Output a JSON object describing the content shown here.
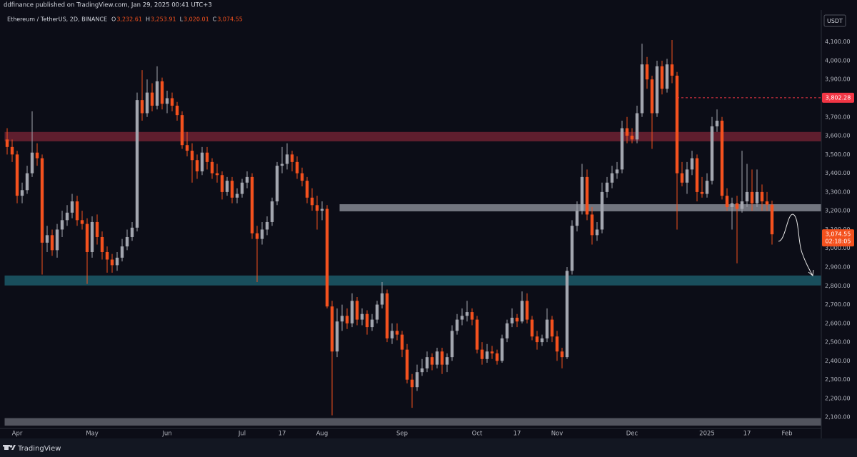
{
  "header": {
    "publisher": "ddfinance published on TradingView.com, Jan 29, 2025 00:41 UTC+3",
    "brand": "TradingView"
  },
  "chart_data": {
    "type": "candlestick",
    "title": "Ethereum / TetherUS, 2D, BINANCE",
    "ohlc": [
      {
        "key": "O",
        "value": {
          "value": 3232.61,
          "label": "3,232.61"
        }
      },
      {
        "key": "H",
        "value": {
          "value": 3253.91,
          "label": "3,253.91"
        }
      },
      {
        "key": "L",
        "value": {
          "value": 3020.01,
          "label": "3,020.01"
        }
      },
      {
        "key": "C",
        "value": {
          "value": 3074.55,
          "label": "3,074.55"
        }
      }
    ],
    "currency": "USDT",
    "up_color": "#a3a6af",
    "down_color": "#f4511e",
    "ylim": [
      2040,
      4270
    ],
    "yticks": [
      {
        "value": 2100,
        "label": "2,100.00"
      },
      {
        "value": 2200,
        "label": "2,200.00"
      },
      {
        "value": 2300,
        "label": "2,300.00"
      },
      {
        "value": 2400,
        "label": "2,400.00"
      },
      {
        "value": 2500,
        "label": "2,500.00"
      },
      {
        "value": 2600,
        "label": "2,600.00"
      },
      {
        "value": 2700,
        "label": "2,700.00"
      },
      {
        "value": 2800,
        "label": "2,800.00"
      },
      {
        "value": 2900,
        "label": "2,900.00"
      },
      {
        "value": 3000,
        "label": "3,000.00"
      },
      {
        "value": 3100,
        "label": "3,100.00"
      },
      {
        "value": 3200,
        "label": "3,200.00"
      },
      {
        "value": 3300,
        "label": "3,300.00"
      },
      {
        "value": 3400,
        "label": "3,400.00"
      },
      {
        "value": 3500,
        "label": "3,500.00"
      },
      {
        "value": 3600,
        "label": "3,600.00"
      },
      {
        "value": 3700,
        "label": "3,700.00"
      },
      {
        "value": 3800,
        "label": "3,800.00"
      },
      {
        "value": 3900,
        "label": "3,900.00"
      },
      {
        "value": 4000,
        "label": "4,000.00"
      },
      {
        "value": 4100,
        "label": "4,100.00"
      }
    ],
    "grid": false,
    "zones": [
      {
        "low": 3570,
        "high": 3620,
        "start": 0,
        "color": "#6e2233"
      },
      {
        "low": 3197,
        "high": 3235,
        "start": 67,
        "color": "#858892"
      },
      {
        "low": 2802,
        "high": 2855,
        "start": 0,
        "color": "#1c5a68"
      },
      {
        "low": 2055,
        "high": 2095,
        "start": 0,
        "color": "#5f626b"
      }
    ],
    "marker": {
      "value": 3802.28,
      "label": "3,802.28",
      "start": 134,
      "color": "#f23645"
    },
    "last_price": {
      "value": 3074.55,
      "label": "3,074.55"
    },
    "countdown": "02:18:05",
    "categories": [
      null,
      null,
      "Apr",
      null,
      null,
      null,
      null,
      null,
      null,
      null,
      null,
      null,
      null,
      null,
      null,
      null,
      null,
      "May",
      null,
      null,
      null,
      null,
      null,
      null,
      null,
      null,
      null,
      null,
      null,
      null,
      null,
      null,
      "Jun",
      null,
      null,
      null,
      null,
      null,
      null,
      null,
      null,
      null,
      null,
      null,
      null,
      null,
      null,
      "Jul",
      null,
      null,
      null,
      null,
      null,
      null,
      null,
      "17",
      null,
      null,
      null,
      null,
      null,
      null,
      null,
      "Aug",
      null,
      null,
      null,
      null,
      null,
      null,
      null,
      null,
      null,
      null,
      null,
      null,
      null,
      null,
      null,
      "Sep",
      null,
      null,
      null,
      null,
      null,
      null,
      null,
      null,
      null,
      null,
      null,
      null,
      null,
      null,
      "Oct",
      null,
      null,
      null,
      null,
      null,
      null,
      null,
      "17",
      null,
      null,
      null,
      null,
      null,
      null,
      null,
      "Nov",
      null,
      null,
      null,
      null,
      null,
      null,
      null,
      null,
      null,
      null,
      null,
      null,
      null,
      null,
      "Dec",
      null,
      null,
      null,
      null,
      null,
      null,
      null,
      null,
      null,
      null,
      null,
      null,
      null,
      null,
      "2025",
      null,
      null,
      null,
      null,
      null,
      null,
      null,
      "17",
      null,
      null,
      null,
      null,
      null,
      null,
      null,
      "Feb",
      null,
      null,
      null,
      null,
      null,
      null
    ],
    "candles": [
      [
        3580,
        3640,
        3500,
        3540
      ],
      [
        3540,
        3580,
        3460,
        3500
      ],
      [
        3500,
        3520,
        3240,
        3280
      ],
      [
        3280,
        3350,
        3240,
        3310
      ],
      [
        3310,
        3440,
        3290,
        3400
      ],
      [
        3400,
        3730,
        3380,
        3510
      ],
      [
        3510,
        3560,
        3440,
        3480
      ],
      [
        3480,
        3500,
        2860,
        3030
      ],
      [
        3030,
        3120,
        2980,
        3070
      ],
      [
        3070,
        3100,
        2960,
        2990
      ],
      [
        2990,
        3130,
        2950,
        3100
      ],
      [
        3100,
        3200,
        3060,
        3150
      ],
      [
        3150,
        3230,
        3120,
        3190
      ],
      [
        3190,
        3290,
        3160,
        3250
      ],
      [
        3250,
        3280,
        3120,
        3150
      ],
      [
        3150,
        3200,
        3100,
        3130
      ],
      [
        3130,
        3160,
        2810,
        2980
      ],
      [
        2980,
        3170,
        2950,
        3140
      ],
      [
        3140,
        3180,
        3020,
        3060
      ],
      [
        3060,
        3090,
        2940,
        2980
      ],
      [
        2980,
        3010,
        2870,
        2940
      ],
      [
        2940,
        2970,
        2870,
        2910
      ],
      [
        2910,
        2980,
        2880,
        2950
      ],
      [
        2950,
        3050,
        2930,
        3010
      ],
      [
        3010,
        3100,
        2990,
        3060
      ],
      [
        3060,
        3140,
        3040,
        3110
      ],
      [
        3110,
        3830,
        3090,
        3790
      ],
      [
        3790,
        3950,
        3680,
        3720
      ],
      [
        3720,
        3900,
        3700,
        3830
      ],
      [
        3830,
        3880,
        3730,
        3760
      ],
      [
        3760,
        3970,
        3740,
        3890
      ],
      [
        3890,
        3910,
        3740,
        3770
      ],
      [
        3770,
        3840,
        3720,
        3800
      ],
      [
        3800,
        3830,
        3730,
        3760
      ],
      [
        3760,
        3780,
        3680,
        3710
      ],
      [
        3710,
        3730,
        3530,
        3550
      ],
      [
        3550,
        3620,
        3490,
        3520
      ],
      [
        3520,
        3560,
        3350,
        3470
      ],
      [
        3470,
        3500,
        3370,
        3410
      ],
      [
        3410,
        3540,
        3390,
        3510
      ],
      [
        3510,
        3540,
        3420,
        3460
      ],
      [
        3460,
        3480,
        3370,
        3400
      ],
      [
        3400,
        3450,
        3350,
        3390
      ],
      [
        3390,
        3410,
        3260,
        3300
      ],
      [
        3300,
        3380,
        3280,
        3360
      ],
      [
        3360,
        3380,
        3240,
        3270
      ],
      [
        3270,
        3320,
        3240,
        3290
      ],
      [
        3290,
        3370,
        3270,
        3350
      ],
      [
        3350,
        3410,
        3320,
        3380
      ],
      [
        3380,
        3400,
        3050,
        3080
      ],
      [
        3080,
        3120,
        2820,
        3050
      ],
      [
        3050,
        3140,
        3020,
        3100
      ],
      [
        3100,
        3170,
        3070,
        3140
      ],
      [
        3140,
        3270,
        3120,
        3250
      ],
      [
        3250,
        3460,
        3230,
        3440
      ],
      [
        3440,
        3540,
        3400,
        3450
      ],
      [
        3450,
        3560,
        3420,
        3500
      ],
      [
        3500,
        3520,
        3410,
        3460
      ],
      [
        3460,
        3490,
        3370,
        3400
      ],
      [
        3400,
        3430,
        3330,
        3360
      ],
      [
        3360,
        3380,
        3240,
        3270
      ],
      [
        3270,
        3320,
        3200,
        3230
      ],
      [
        3230,
        3280,
        3100,
        3200
      ],
      [
        3200,
        3250,
        3150,
        3210
      ],
      [
        3210,
        3230,
        2680,
        2690
      ],
      [
        2690,
        2720,
        2110,
        2450
      ],
      [
        2450,
        2680,
        2420,
        2610
      ],
      [
        2610,
        2700,
        2560,
        2640
      ],
      [
        2640,
        2680,
        2570,
        2600
      ],
      [
        2600,
        2760,
        2580,
        2720
      ],
      [
        2720,
        2740,
        2590,
        2620
      ],
      [
        2620,
        2680,
        2590,
        2650
      ],
      [
        2650,
        2670,
        2540,
        2580
      ],
      [
        2580,
        2650,
        2560,
        2620
      ],
      [
        2620,
        2720,
        2600,
        2700
      ],
      [
        2700,
        2820,
        2680,
        2760
      ],
      [
        2760,
        2780,
        2500,
        2520
      ],
      [
        2520,
        2600,
        2490,
        2560
      ],
      [
        2560,
        2600,
        2510,
        2540
      ],
      [
        2540,
        2560,
        2420,
        2460
      ],
      [
        2460,
        2490,
        2280,
        2300
      ],
      [
        2300,
        2330,
        2150,
        2260
      ],
      [
        2260,
        2380,
        2240,
        2340
      ],
      [
        2340,
        2410,
        2320,
        2360
      ],
      [
        2360,
        2450,
        2340,
        2420
      ],
      [
        2420,
        2440,
        2350,
        2380
      ],
      [
        2380,
        2470,
        2360,
        2450
      ],
      [
        2450,
        2470,
        2330,
        2380
      ],
      [
        2380,
        2440,
        2340,
        2420
      ],
      [
        2420,
        2590,
        2400,
        2560
      ],
      [
        2560,
        2650,
        2540,
        2620
      ],
      [
        2620,
        2680,
        2590,
        2640
      ],
      [
        2640,
        2720,
        2610,
        2660
      ],
      [
        2660,
        2680,
        2590,
        2620
      ],
      [
        2620,
        2640,
        2440,
        2460
      ],
      [
        2460,
        2500,
        2380,
        2410
      ],
      [
        2410,
        2490,
        2390,
        2450
      ],
      [
        2450,
        2480,
        2410,
        2440
      ],
      [
        2440,
        2460,
        2380,
        2400
      ],
      [
        2400,
        2540,
        2390,
        2520
      ],
      [
        2520,
        2620,
        2500,
        2600
      ],
      [
        2600,
        2680,
        2580,
        2630
      ],
      [
        2630,
        2650,
        2580,
        2610
      ],
      [
        2610,
        2770,
        2600,
        2720
      ],
      [
        2720,
        2760,
        2600,
        2620
      ],
      [
        2620,
        2640,
        2510,
        2530
      ],
      [
        2530,
        2560,
        2460,
        2500
      ],
      [
        2500,
        2540,
        2480,
        2520
      ],
      [
        2520,
        2680,
        2500,
        2620
      ],
      [
        2620,
        2640,
        2500,
        2530
      ],
      [
        2530,
        2560,
        2400,
        2450
      ],
      [
        2450,
        2470,
        2360,
        2420
      ],
      [
        2420,
        2900,
        2410,
        2880
      ],
      [
        2880,
        3150,
        2860,
        3120
      ],
      [
        3120,
        3250,
        3090,
        3200
      ],
      [
        3200,
        3450,
        3180,
        3380
      ],
      [
        3380,
        3420,
        3150,
        3180
      ],
      [
        3180,
        3220,
        3020,
        3070
      ],
      [
        3070,
        3140,
        3040,
        3100
      ],
      [
        3100,
        3350,
        3080,
        3300
      ],
      [
        3300,
        3380,
        3270,
        3350
      ],
      [
        3350,
        3440,
        3320,
        3400
      ],
      [
        3400,
        3460,
        3370,
        3420
      ],
      [
        3420,
        3680,
        3400,
        3640
      ],
      [
        3640,
        3700,
        3560,
        3600
      ],
      [
        3600,
        3640,
        3560,
        3580
      ],
      [
        3580,
        3760,
        3560,
        3720
      ],
      [
        3720,
        4090,
        3700,
        3980
      ],
      [
        3980,
        4020,
        3850,
        3900
      ],
      [
        3900,
        3920,
        3530,
        3720
      ],
      [
        3720,
        4000,
        3700,
        3970
      ],
      [
        3970,
        4000,
        3820,
        3850
      ],
      [
        3850,
        4010,
        3830,
        3980
      ],
      [
        3980,
        4110,
        3880,
        3920
      ],
      [
        3920,
        3940,
        3100,
        3400
      ],
      [
        3400,
        3460,
        3330,
        3350
      ],
      [
        3350,
        3460,
        3290,
        3420
      ],
      [
        3420,
        3520,
        3390,
        3480
      ],
      [
        3480,
        3500,
        3250,
        3300
      ],
      [
        3300,
        3380,
        3270,
        3290
      ],
      [
        3290,
        3400,
        3270,
        3360
      ],
      [
        3360,
        3700,
        3340,
        3650
      ],
      [
        3650,
        3740,
        3620,
        3680
      ],
      [
        3680,
        3700,
        3260,
        3280
      ],
      [
        3280,
        3320,
        3200,
        3220
      ],
      [
        3220,
        3270,
        3100,
        3240
      ],
      [
        3240,
        3280,
        2920,
        3210
      ],
      [
        3210,
        3520,
        3190,
        3250
      ],
      [
        3250,
        3450,
        3220,
        3300
      ],
      [
        3300,
        3420,
        3200,
        3240
      ],
      [
        3240,
        3420,
        3220,
        3300
      ],
      [
        3300,
        3340,
        3200,
        3250
      ],
      [
        3250,
        3300,
        3200,
        3232.61
      ],
      [
        3232.61,
        3253.91,
        3020.01,
        3074.55
      ],
      null,
      null,
      null,
      null,
      null,
      null,
      null,
      null,
      null
    ]
  }
}
